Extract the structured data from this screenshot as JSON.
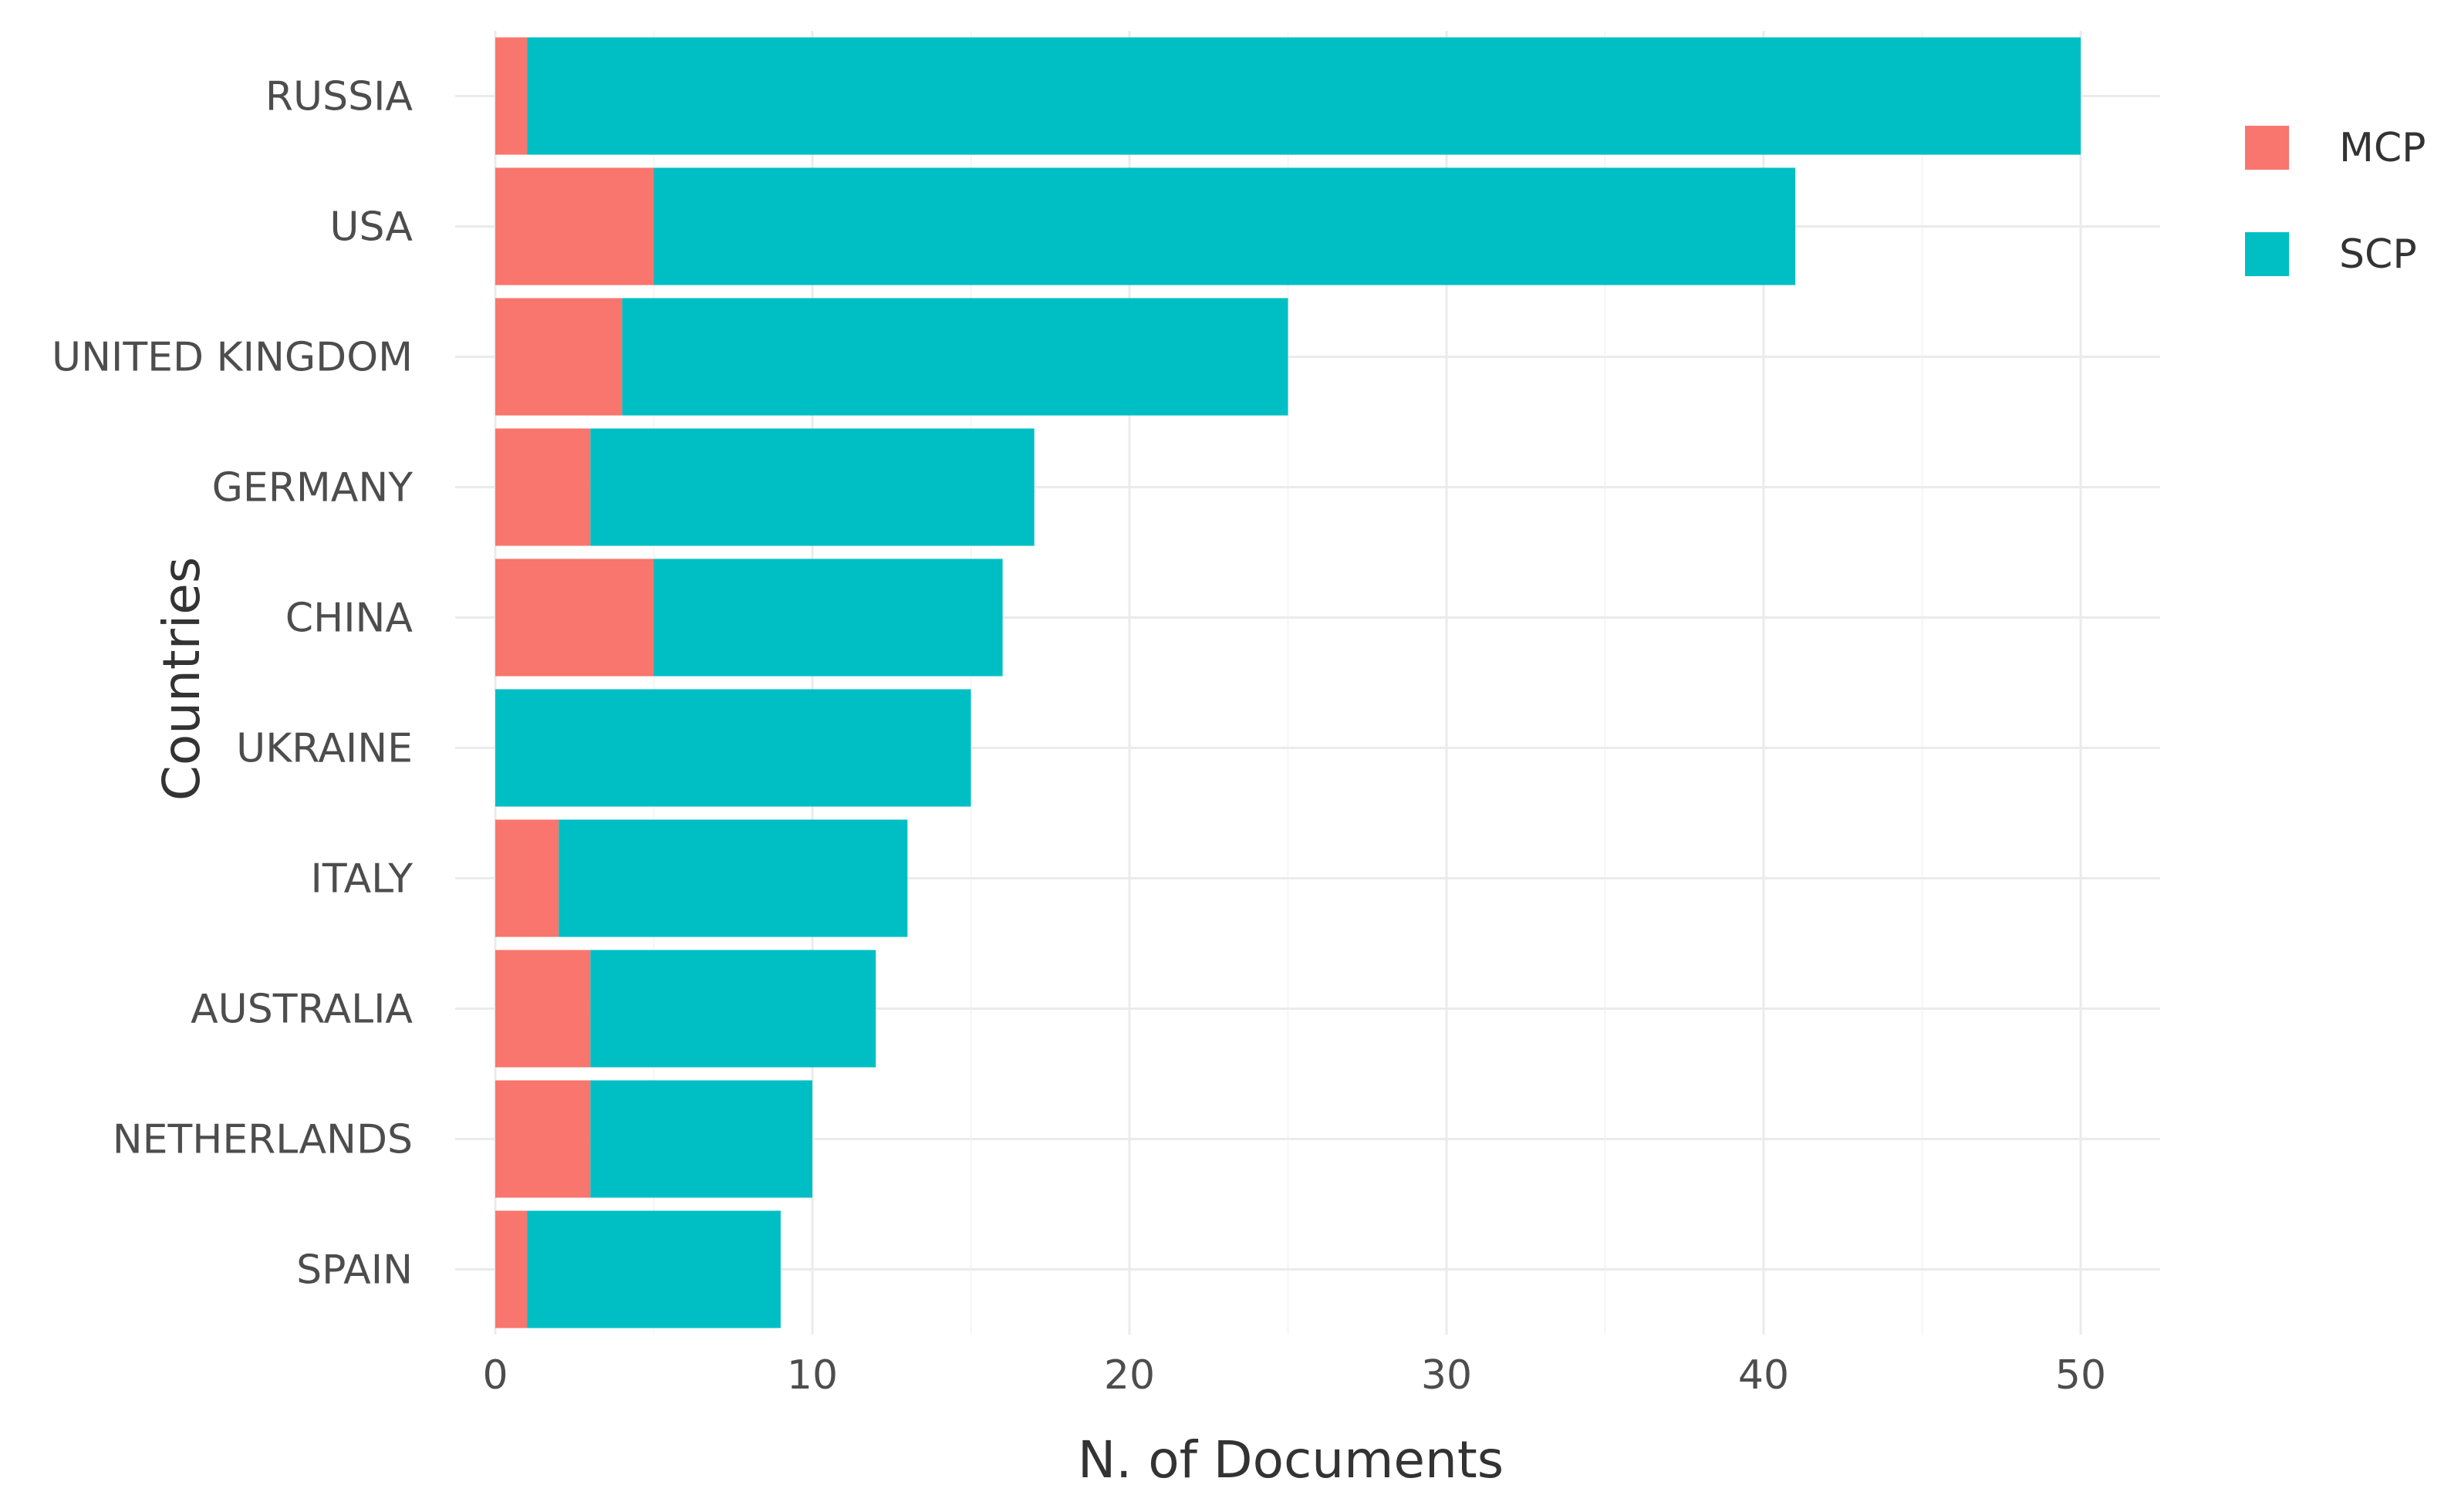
{
  "chart_data": {
    "type": "bar",
    "orientation": "horizontal",
    "stacked": true,
    "categories": [
      "RUSSIA",
      "USA",
      "UNITED KINGDOM",
      "GERMANY",
      "CHINA",
      "UKRAINE",
      "ITALY",
      "AUSTRALIA",
      "NETHERLANDS",
      "SPAIN"
    ],
    "series": [
      {
        "name": "MCP",
        "color": "#F8766D",
        "values": [
          1,
          5,
          4,
          3,
          5,
          0,
          2,
          3,
          3,
          1
        ]
      },
      {
        "name": "SCP",
        "color": "#00BFC4",
        "values": [
          49,
          36,
          21,
          14,
          11,
          15,
          11,
          9,
          7,
          8
        ]
      }
    ],
    "xlabel": "N. of Documents",
    "ylabel": "Countries",
    "xlim": [
      0,
      52.5
    ],
    "xticks": [
      0,
      10,
      20,
      30,
      40,
      50
    ],
    "grid": true,
    "legend_position": "right"
  }
}
